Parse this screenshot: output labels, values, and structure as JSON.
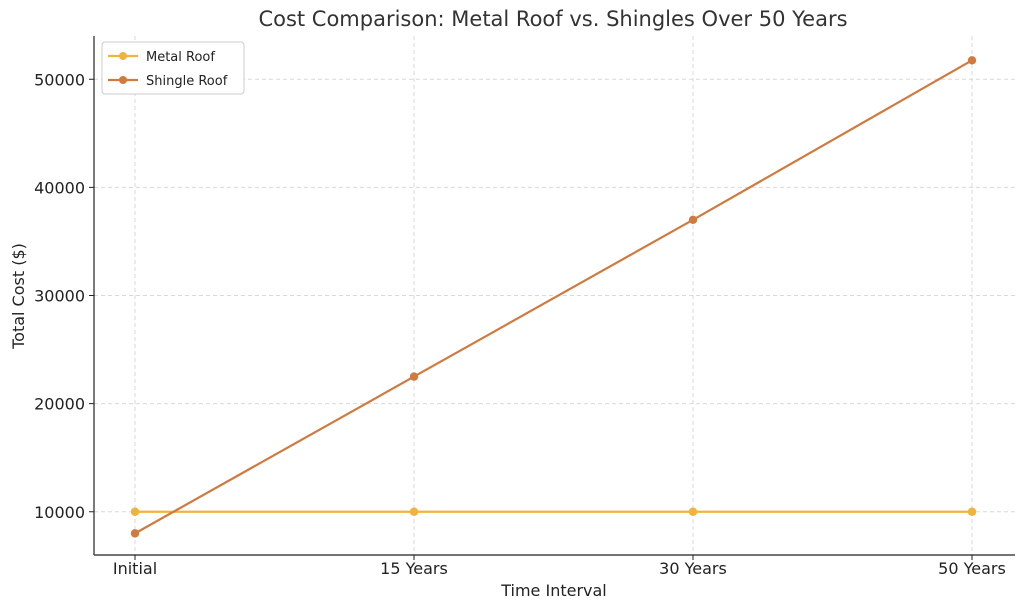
{
  "chart_data": {
    "type": "line",
    "title": "Cost Comparison: Metal Roof vs. Shingles Over 50 Years",
    "xlabel": "Time Interval",
    "ylabel": "Total Cost ($)",
    "categories": [
      "Initial",
      "15 Years",
      "30 Years",
      "50 Years"
    ],
    "series": [
      {
        "name": "Metal Roof",
        "color": "#f0b43c",
        "values": [
          10000,
          10000,
          10000,
          10000
        ]
      },
      {
        "name": "Shingle Roof",
        "color": "#d17a3f",
        "values": [
          8000,
          22500,
          37000,
          51750
        ]
      }
    ],
    "ylim": [
      6000,
      54000
    ],
    "yticks": [
      10000,
      20000,
      30000,
      40000,
      50000
    ],
    "grid": true,
    "legend": "top-left"
  }
}
